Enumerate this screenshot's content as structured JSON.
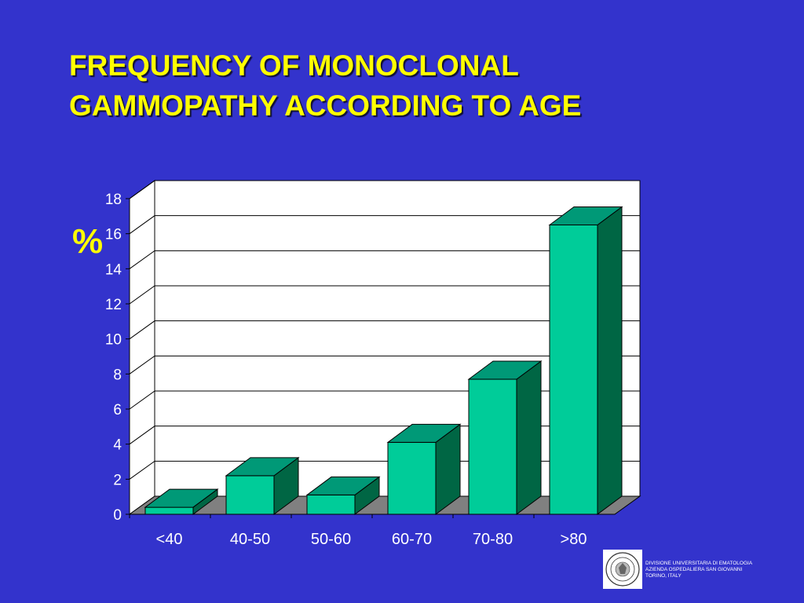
{
  "slide": {
    "title_line1": "FREQUENCY OF MONOCLONAL",
    "title_line2": "GAMMOPATHY ACCORDING TO AGE",
    "background_color": "#3333cc",
    "title_color": "#ffff00"
  },
  "chart_data": {
    "type": "bar",
    "title": "",
    "ylabel": "%",
    "xlabel": "",
    "categories": [
      "<40",
      "40-50",
      "50-60",
      "60-70",
      "70-80",
      ">80"
    ],
    "values": [
      0.4,
      2.2,
      1.1,
      4.1,
      7.7,
      16.5
    ],
    "ylim": [
      0,
      18
    ],
    "yticks": [
      0,
      2,
      4,
      6,
      8,
      10,
      12,
      14,
      16,
      18
    ],
    "grid": true,
    "style": "3d",
    "bar_color": "#00cc99",
    "bar_top_color": "#009977",
    "bar_side_color": "#006644",
    "plot_background": "#ffffff",
    "floor_color": "#808080"
  },
  "footer": {
    "line1": "DIVISIONE UNIVERSITARIA DI EMATOLOGIA",
    "line2": "AZIENDA OSPEDALIERA SAN GIOVANNI",
    "line3": "TORINO, ITALY",
    "seal_icon": "university-seal-icon"
  }
}
